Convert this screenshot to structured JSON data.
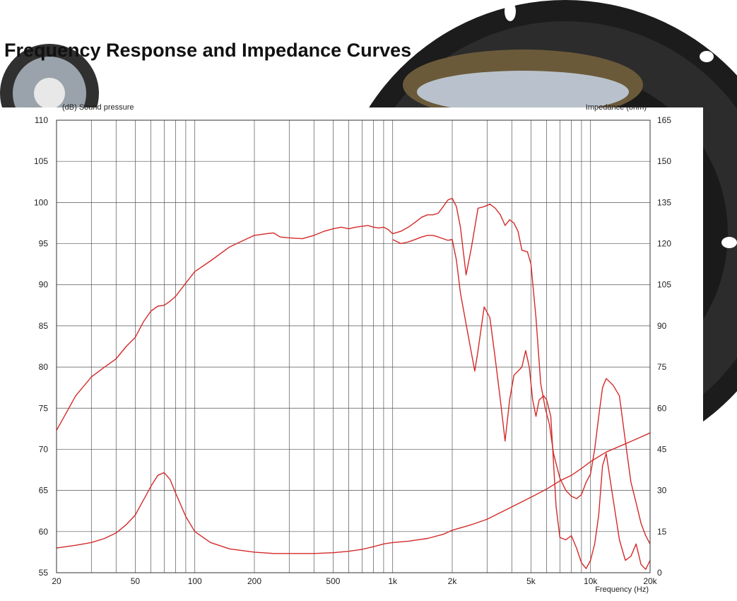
{
  "title": "Frequency Response and Impedance Curves",
  "chart_data": {
    "type": "line",
    "title": "Frequency Response and Impedance Curves",
    "xlabel": "Frequency (Hz)",
    "ylabel": "(dB) Sound pressure",
    "y2label": "Impedance (ohm)",
    "xscale": "log",
    "xlim": [
      20,
      20000
    ],
    "ylim": [
      55,
      110
    ],
    "y2lim": [
      0,
      165
    ],
    "grid": true,
    "colors": {
      "curves": "#d42a2a",
      "grid": "#555555"
    },
    "x_ticks": [
      {
        "v": 20,
        "label": "20"
      },
      {
        "v": 50,
        "label": "50"
      },
      {
        "v": 100,
        "label": "100"
      },
      {
        "v": 200,
        "label": "200"
      },
      {
        "v": 500,
        "label": "500"
      },
      {
        "v": 1000,
        "label": "1k"
      },
      {
        "v": 2000,
        "label": "2k"
      },
      {
        "v": 5000,
        "label": "5k"
      },
      {
        "v": 10000,
        "label": "10k"
      },
      {
        "v": 20000,
        "label": "20k"
      }
    ],
    "y_ticks": [
      "55",
      "60",
      "65",
      "70",
      "75",
      "80",
      "85",
      "90",
      "95",
      "100",
      "105",
      "110"
    ],
    "y2_ticks": [
      "0",
      "15",
      "30",
      "45",
      "60",
      "75",
      "90",
      "105",
      "120",
      "135",
      "150",
      "165"
    ],
    "series": [
      {
        "axis": "left",
        "x": [
          20,
          25,
          30,
          35,
          40,
          45,
          50,
          55,
          60,
          65,
          70,
          75,
          80,
          90,
          100,
          120,
          150,
          180,
          200,
          230,
          250,
          270,
          300,
          350,
          400,
          450,
          500,
          550,
          600,
          650,
          700,
          750,
          800,
          850,
          900,
          950,
          1000,
          1100,
          1200,
          1300,
          1400,
          1500,
          1600,
          1700,
          1800,
          1900,
          2000,
          2100,
          2200,
          2350,
          2500,
          2700,
          2900,
          3100,
          3300,
          3500,
          3700,
          3900,
          4100,
          4300,
          4500,
          4800,
          5000,
          5300,
          5600,
          5900,
          6200,
          6500,
          7000,
          7500,
          8000,
          8500,
          9000,
          9500,
          10000,
          10500,
          11000,
          11500,
          12000,
          12500,
          13000,
          14000,
          15000,
          16000,
          17000,
          18000,
          19000,
          20000
        ],
        "y": [
          72.3,
          76.5,
          78.8,
          80,
          81,
          82.5,
          83.6,
          85.5,
          86.8,
          87.4,
          87.5,
          88,
          88.6,
          90.2,
          91.6,
          92.9,
          94.6,
          95.5,
          96,
          96.2,
          96.3,
          95.8,
          95.7,
          95.6,
          96,
          96.5,
          96.8,
          97,
          96.8,
          97,
          97.1,
          97.2,
          97,
          96.9,
          97,
          96.7,
          96.2,
          96.5,
          97,
          97.6,
          98.2,
          98.5,
          98.5,
          98.7,
          99.5,
          100.3,
          100.5,
          99.5,
          97,
          91.2,
          94.5,
          99.3,
          99.5,
          99.8,
          99.3,
          98.5,
          97.2,
          97.9,
          97.5,
          96.5,
          94.2,
          94,
          92.5,
          86,
          78,
          75,
          73,
          69.5,
          66.5,
          65,
          64.3,
          64,
          64.5,
          66,
          67,
          70,
          74,
          77.5,
          78.6,
          78.2,
          77.8,
          76.5,
          71,
          66,
          63.5,
          61,
          59.5,
          58.5
        ]
      },
      {
        "axis": "left",
        "x": [
          1000,
          1100,
          1200,
          1300,
          1400,
          1500,
          1600,
          1700,
          1800,
          1900,
          2000,
          2100,
          2200,
          2400,
          2600,
          2700,
          2900,
          3100,
          3300,
          3500,
          3700,
          3900,
          4100,
          4300,
          4500,
          4700,
          4900,
          5100,
          5300,
          5500,
          5800,
          6000,
          6300,
          6700,
          7000,
          7500,
          8000,
          8500,
          9000,
          9500,
          10000,
          10500,
          11000,
          11500,
          12000,
          13000,
          14000,
          15000,
          16000,
          17000,
          18000,
          19000,
          20000
        ],
        "y": [
          95.5,
          95,
          95.2,
          95.5,
          95.8,
          96,
          96,
          95.8,
          95.6,
          95.4,
          95.5,
          93,
          89,
          84,
          79.5,
          82,
          87.3,
          86,
          81,
          76,
          71,
          76,
          79,
          79.5,
          80,
          82,
          80,
          76,
          74,
          76,
          76.5,
          76,
          74,
          63,
          59.3,
          59,
          59.5,
          58,
          56.2,
          55.5,
          56.5,
          58.5,
          62,
          68,
          69.5,
          64,
          59,
          56.5,
          57,
          58.5,
          56,
          55.4,
          56.5
        ]
      },
      {
        "axis": "right",
        "x": [
          20,
          25,
          30,
          35,
          40,
          45,
          50,
          55,
          60,
          65,
          70,
          75,
          80,
          90,
          100,
          120,
          150,
          200,
          250,
          300,
          400,
          500,
          600,
          700,
          800,
          900,
          1000,
          1200,
          1500,
          1800,
          2000,
          2500,
          3000,
          4000,
          5000,
          6000,
          7000,
          8000,
          9000,
          10000,
          12000,
          15000,
          18000,
          20000
        ],
        "y": [
          9,
          10,
          11,
          12.5,
          14.5,
          17.5,
          21,
          26.5,
          31.5,
          35.5,
          36.5,
          34,
          29,
          20.5,
          15,
          11,
          8.7,
          7.5,
          7,
          7,
          7,
          7.3,
          7.8,
          8.5,
          9.5,
          10.5,
          11,
          11.5,
          12.5,
          14,
          15.5,
          17.5,
          19.5,
          24,
          27.5,
          30.5,
          33.5,
          35.5,
          38,
          40.5,
          44,
          47,
          49.5,
          51
        ]
      }
    ]
  }
}
